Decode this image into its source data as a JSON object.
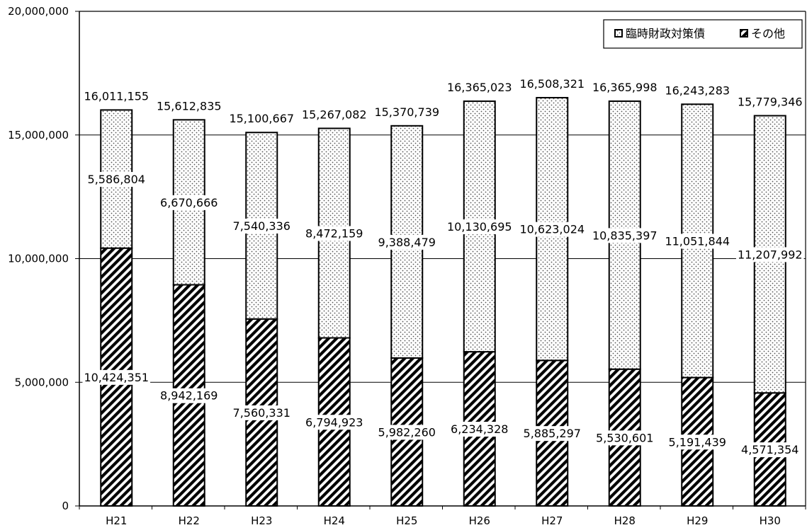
{
  "chart_data": {
    "type": "bar",
    "stacked": true,
    "categories": [
      "H21",
      "H22",
      "H23",
      "H24",
      "H25",
      "H26",
      "H27",
      "H28",
      "H29",
      "H30"
    ],
    "series": [
      {
        "name": "その他",
        "pattern": "diagonal-hatch",
        "values": [
          10424351,
          8942169,
          7560331,
          6794923,
          5982260,
          6234328,
          5885297,
          5530601,
          5191439,
          4571354
        ]
      },
      {
        "name": "臨時財政対策債",
        "pattern": "dotted",
        "values": [
          5586804,
          6670666,
          7540336,
          8472159,
          9388479,
          10130695,
          10623024,
          10835397,
          11051844,
          11207992
        ]
      }
    ],
    "totals": [
      16011155,
      15612835,
      15100667,
      15267082,
      15370739,
      16365023,
      16508321,
      16365998,
      16243283,
      15779346
    ],
    "bottom_labels": [
      "10,424,351",
      "8,942,169",
      "7,560,331",
      "6,794,923",
      "5,982,260",
      "6,234,328",
      "5,885,297",
      "5,530,601",
      "5,191,439",
      "4,571,354"
    ],
    "top_labels": [
      "5,586,804",
      "6,670,666",
      "7,540,336",
      "8,472,159",
      "9,388,479",
      "10,130,695",
      "10,623,024",
      "10,835,397",
      "11,051,844",
      "11,207,992"
    ],
    "total_labels": [
      "16,011,155",
      "15,612,835",
      "15,100,667",
      "15,267,082",
      "15,370,739",
      "16,365,023",
      "16,508,321",
      "16,365,998",
      "16,243,283",
      "15,779,346"
    ],
    "yticks": [
      0,
      5000000,
      10000000,
      15000000,
      20000000
    ],
    "ytick_labels": [
      "0",
      "5,000,000",
      "10,000,000",
      "15,000,000",
      "20,000,000"
    ],
    "ylim": [
      0,
      20000000
    ],
    "grid": true,
    "legend_position": "top-right",
    "legend": [
      "臨時財政対策債",
      "その他"
    ],
    "colors": {
      "outline": "#000000",
      "background": "#ffffff",
      "hatch": "#000000",
      "dots": "#555555"
    }
  }
}
